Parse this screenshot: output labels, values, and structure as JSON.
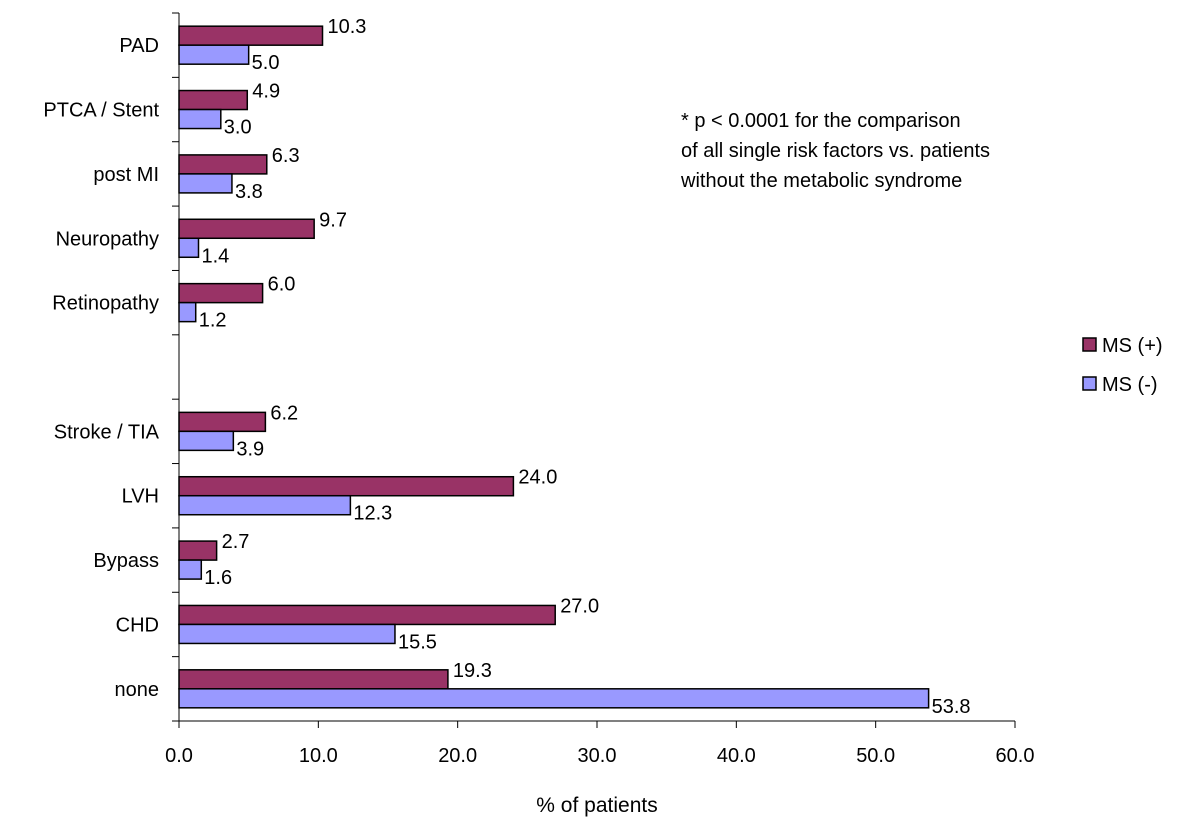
{
  "chart_data": {
    "type": "bar",
    "orientation": "horizontal",
    "categories": [
      "PAD",
      "PTCA / Stent",
      "post MI",
      "Neuropathy",
      "Retinopathy",
      "",
      "Stroke / TIA",
      "LVH",
      "Bypass",
      "CHD",
      "none"
    ],
    "series": [
      {
        "name": "MS (+)",
        "color": "#993366",
        "values": [
          10.3,
          4.9,
          6.3,
          9.7,
          6.0,
          null,
          6.2,
          24.0,
          2.7,
          27.0,
          19.3
        ],
        "labels": [
          "10.3",
          "4.9",
          "6.3",
          "9.7",
          "6.0",
          "",
          "6.2",
          "24.0",
          "2.7",
          "27.0",
          "19.3"
        ]
      },
      {
        "name": "MS (-)",
        "color": "#9999ff",
        "values": [
          5.0,
          3.0,
          3.8,
          1.4,
          1.2,
          null,
          3.9,
          12.3,
          1.6,
          15.5,
          53.8
        ],
        "labels": [
          "5.0",
          "3.0",
          "3.8",
          "1.4",
          "1.2",
          "",
          "3.9",
          "12.3",
          "1.6",
          "15.5",
          "53.8"
        ]
      }
    ],
    "xlabel": "% of patients",
    "ylabel": "",
    "xlim": [
      0,
      60
    ],
    "xticks": [
      "0.0",
      "10.0",
      "20.0",
      "30.0",
      "40.0",
      "50.0",
      "60.0"
    ],
    "annotation": [
      "* p < 0.0001 for the comparison",
      "of all single risk factors vs. patients",
      "without the metabolic syndrome"
    ],
    "legend_position": "right",
    "grid": false
  }
}
